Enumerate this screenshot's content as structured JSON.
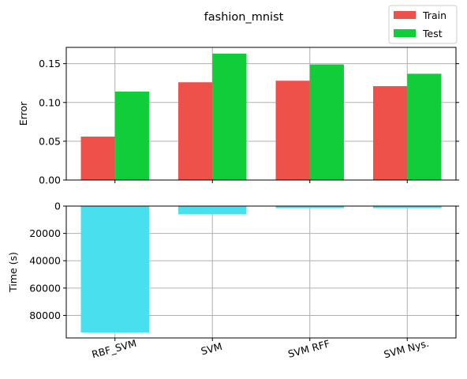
{
  "chart_data": [
    {
      "type": "bar",
      "title": "fashion_mnist",
      "ylabel": "Error",
      "xlabel": "",
      "categories": [
        "RBF_SVM",
        "SVM",
        "SVM RFF",
        "SVM Nys."
      ],
      "series": [
        {
          "name": "Train",
          "color": "#ee504a",
          "values": [
            0.056,
            0.126,
            0.128,
            0.121
          ]
        },
        {
          "name": "Test",
          "color": "#11cd39",
          "values": [
            0.114,
            0.163,
            0.149,
            0.137
          ]
        }
      ],
      "ylim": [
        0,
        0.171
      ],
      "yticks": [
        0.0,
        0.05,
        0.1,
        0.15
      ],
      "ytick_labels": [
        "0.00",
        "0.05",
        "0.10",
        "0.15"
      ],
      "grid": true,
      "legend_position": "top-right"
    },
    {
      "type": "bar",
      "ylabel": "Time (s)",
      "xlabel": "",
      "categories": [
        "RBF_SVM",
        "SVM",
        "SVM RFF",
        "SVM Nys."
      ],
      "series": [
        {
          "color": "#48e0ef",
          "values": [
            92500,
            6000,
            1500,
            1500
          ]
        }
      ],
      "ylim": [
        0,
        96500
      ],
      "y_inverted": true,
      "yticks": [
        0,
        20000,
        40000,
        60000,
        80000
      ],
      "ytick_labels": [
        "0",
        "20000",
        "40000",
        "60000",
        "80000"
      ],
      "xtick_labels": [
        "RBF_SVM",
        "SVM",
        "SVM RFF",
        "SVM Nys."
      ],
      "xtick_rotation": 15,
      "grid": true
    }
  ]
}
